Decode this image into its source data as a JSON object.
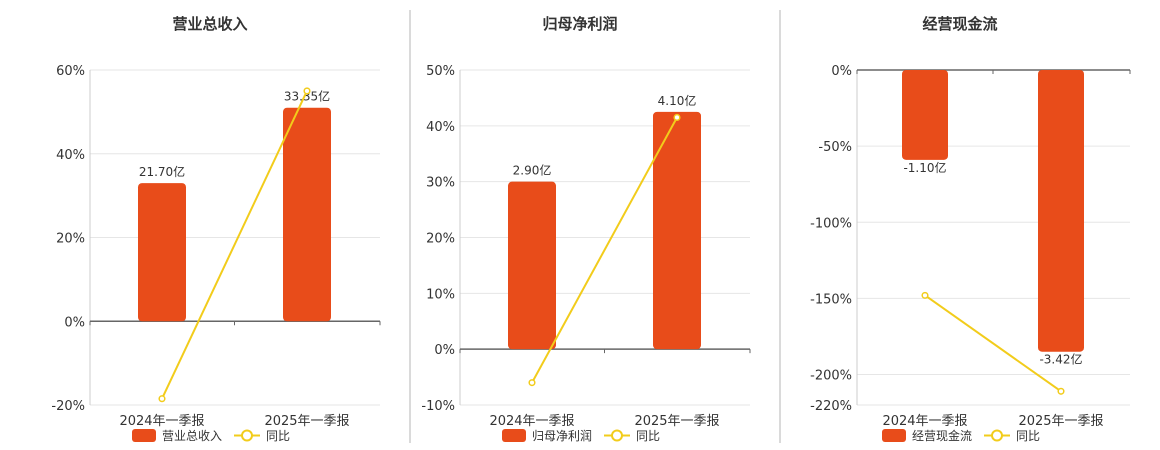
{
  "chart_data": [
    {
      "type": "bar",
      "title": "营业总收入",
      "categories": [
        "2024年一季报",
        "2025年一季报"
      ],
      "series": [
        {
          "name": "营业总收入",
          "type": "bar",
          "values": [
            33,
            51
          ],
          "labels": [
            "21.70亿",
            "33.35亿"
          ]
        },
        {
          "name": "同比",
          "type": "line",
          "values": [
            -18.5,
            55
          ]
        }
      ],
      "yticks": [
        "60%",
        "40%",
        "20%",
        "0%",
        "-20%"
      ],
      "ylim": [
        -20,
        60
      ],
      "grid": true,
      "legend": "bottom",
      "colors": {
        "bar": "#e84c1a",
        "line": "#f2cc1b"
      }
    },
    {
      "type": "bar",
      "title": "归母净利润",
      "categories": [
        "2024年一季报",
        "2025年一季报"
      ],
      "series": [
        {
          "name": "归母净利润",
          "type": "bar",
          "values": [
            30,
            42.5
          ],
          "labels": [
            "2.90亿",
            "4.10亿"
          ]
        },
        {
          "name": "同比",
          "type": "line",
          "values": [
            -6,
            41.5
          ]
        }
      ],
      "yticks": [
        "50%",
        "40%",
        "30%",
        "20%",
        "10%",
        "0%",
        "-10%"
      ],
      "ylim": [
        -10,
        50
      ],
      "grid": true,
      "legend": "bottom",
      "colors": {
        "bar": "#e84c1a",
        "line": "#f2cc1b"
      }
    },
    {
      "type": "bar",
      "title": "经营现金流",
      "categories": [
        "2024年一季报",
        "2025年一季报"
      ],
      "series": [
        {
          "name": "经营现金流",
          "type": "bar",
          "values": [
            -59,
            -185
          ],
          "labels": [
            "-1.10亿",
            "-3.42亿"
          ]
        },
        {
          "name": "同比",
          "type": "line",
          "values": [
            -148,
            -211
          ]
        }
      ],
      "yticks": [
        "0%",
        "-50%",
        "-100%",
        "-150%",
        "-200%",
        "-220%"
      ],
      "ylim": [
        -220,
        0
      ],
      "grid": true,
      "legend": "bottom",
      "colors": {
        "bar": "#e84c1a",
        "line": "#f2cc1b"
      }
    }
  ]
}
